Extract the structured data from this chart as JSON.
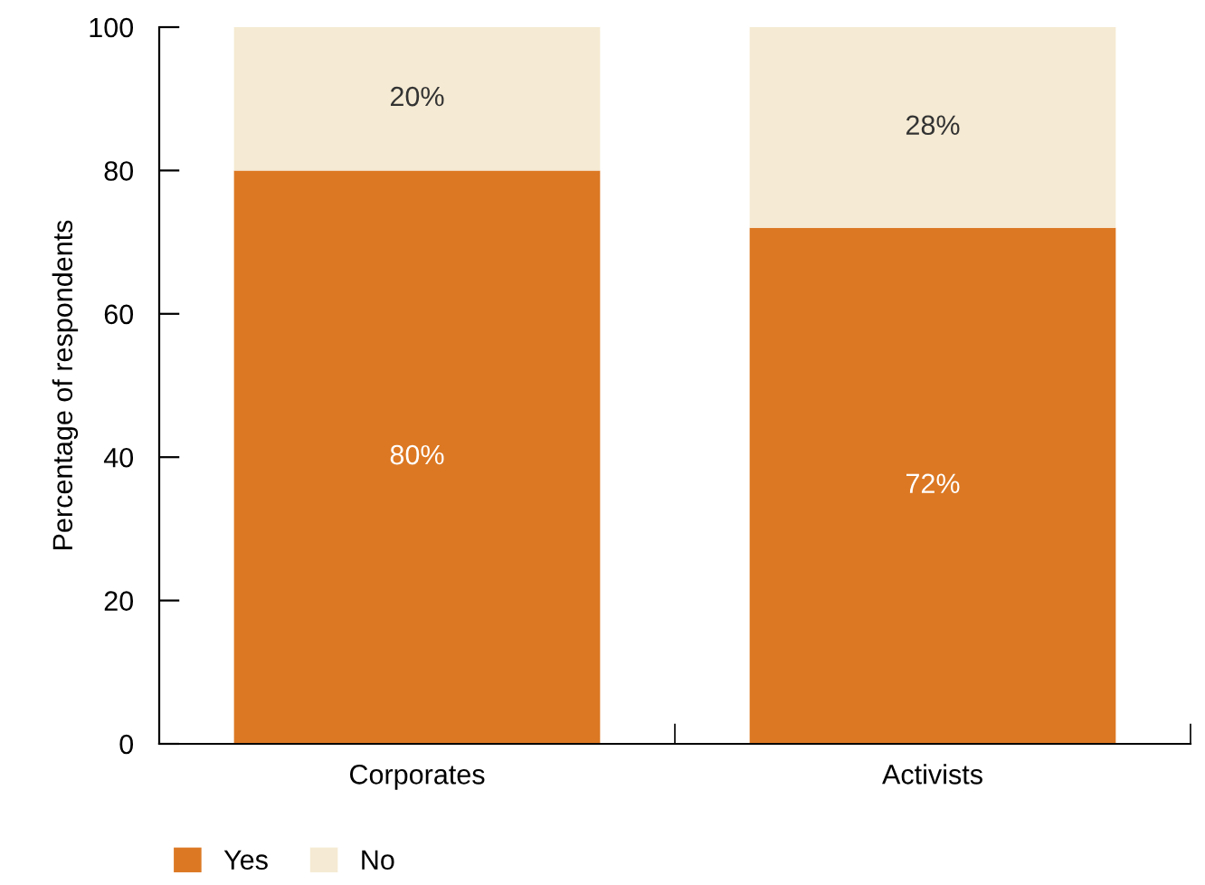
{
  "chart_data": {
    "type": "bar",
    "stacked": true,
    "ylabel": "Percentage of respondents",
    "categories": [
      "Corporates",
      "Activists"
    ],
    "series": [
      {
        "name": "Yes",
        "color": "#dc7823",
        "values": [
          80,
          72
        ],
        "value_labels": [
          "80%",
          "72%"
        ]
      },
      {
        "name": "No",
        "color": "#f5ead3",
        "values": [
          20,
          28
        ],
        "value_labels": [
          "20%",
          "28%"
        ]
      }
    ],
    "ylim": [
      0,
      100
    ],
    "yticks": [
      0,
      20,
      40,
      60,
      80,
      100
    ],
    "grid": false,
    "legend": "bottom left"
  }
}
